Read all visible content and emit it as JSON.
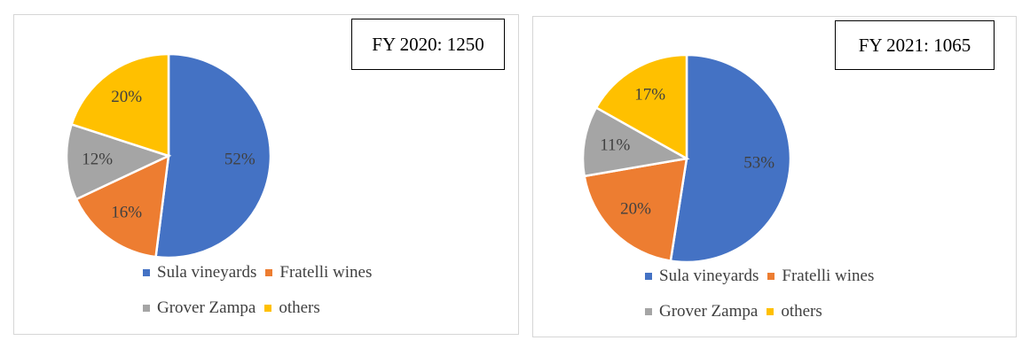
{
  "chart_data": [
    {
      "type": "pie",
      "title": "FY 2020: 1250",
      "categories": [
        "Sula vineyards",
        "Fratelli wines",
        "Grover Zampa",
        "others"
      ],
      "values": [
        52,
        16,
        12,
        20
      ],
      "data_labels": [
        "52%",
        "16%",
        "12%",
        "20%"
      ],
      "colors": [
        "#4472c4",
        "#ed7d31",
        "#a5a5a5",
        "#ffc000"
      ],
      "legend_position": "bottom"
    },
    {
      "type": "pie",
      "title": "FY 2021: 1065",
      "categories": [
        "Sula vineyards",
        "Fratelli wines",
        "Grover Zampa",
        "others"
      ],
      "values": [
        53,
        20,
        11,
        17
      ],
      "data_labels": [
        "53%",
        "20%",
        "11%",
        "17%"
      ],
      "colors": [
        "#4472c4",
        "#ed7d31",
        "#a5a5a5",
        "#ffc000"
      ],
      "legend_position": "bottom"
    }
  ]
}
